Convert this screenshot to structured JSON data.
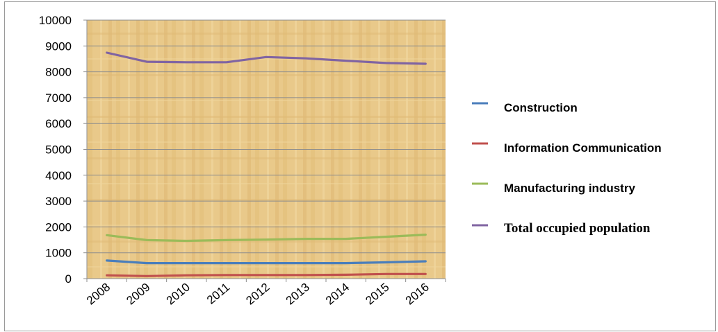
{
  "chart_data": {
    "type": "line",
    "title": "",
    "xlabel": "",
    "ylabel": "",
    "x": [
      "2008",
      "2009",
      "2010",
      "2011",
      "2012",
      "2013",
      "2014",
      "2015",
      "2016"
    ],
    "ylim": [
      0,
      10000
    ],
    "yticks": [
      0,
      1000,
      2000,
      3000,
      4000,
      5000,
      6000,
      7000,
      8000,
      9000,
      10000
    ],
    "grid": "horizontal",
    "legend_position": "right",
    "series": [
      {
        "name": "Construction",
        "color": "#4a7ebb",
        "values": [
          700,
          600,
          600,
          600,
          600,
          600,
          600,
          630,
          670
        ]
      },
      {
        "name": "Information Communication",
        "color": "#c0504d",
        "values": [
          130,
          100,
          130,
          140,
          140,
          140,
          150,
          180,
          180
        ]
      },
      {
        "name": "Manufacturing industry",
        "color": "#9bbb59",
        "values": [
          1680,
          1490,
          1460,
          1490,
          1510,
          1540,
          1540,
          1620,
          1700
        ]
      },
      {
        "name": "Total occupied population",
        "color": "#8064a2",
        "values": [
          8740,
          8390,
          8370,
          8370,
          8570,
          8520,
          8430,
          8340,
          8310
        ]
      }
    ]
  }
}
